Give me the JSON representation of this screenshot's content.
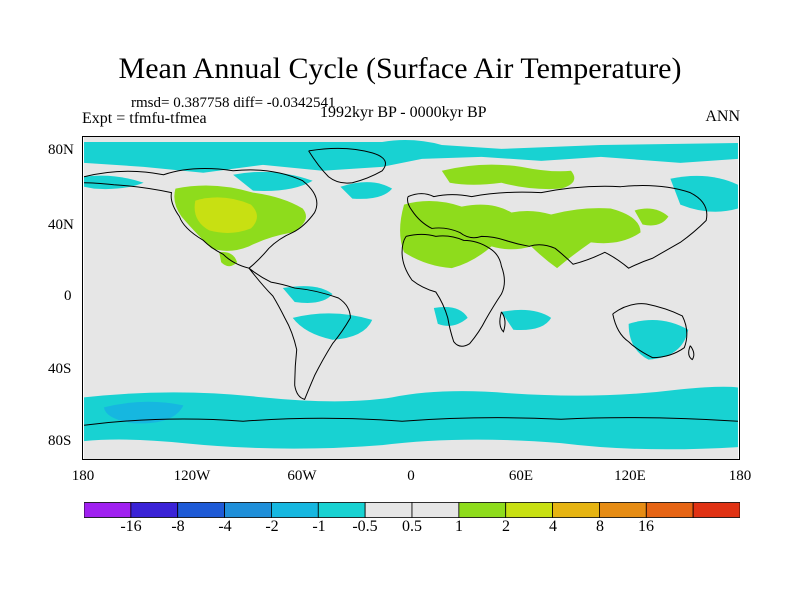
{
  "title": "Mean Annual Cycle (Surface Air Temperature)",
  "stats": "rmsd= 0.387758  diff= -0.0342541",
  "experiment": "Expt = tfmfu-tfmea",
  "period": "1992kyr BP - 0000kyr BP",
  "season": "ANN",
  "y_axis_labels": [
    "80N",
    "40N",
    "0",
    "40S",
    "80S"
  ],
  "x_axis_labels": [
    "180",
    "120W",
    "60W",
    "0",
    "60E",
    "120E",
    "180"
  ],
  "colorbar": {
    "colors": [
      "#a020f0",
      "#3a22d6",
      "#1e5ad6",
      "#1f8fd9",
      "#16b7e0",
      "#18d2d2",
      "#e6e6e6",
      "#e6e6e6",
      "#8edc1c",
      "#c8e012",
      "#e6b412",
      "#e68c14",
      "#e66414",
      "#e03214"
    ],
    "labels": [
      "-16",
      "-8",
      "-4",
      "-2",
      "-1",
      "-0.5",
      "0.5",
      "1",
      "2",
      "4",
      "8",
      "16"
    ]
  }
}
